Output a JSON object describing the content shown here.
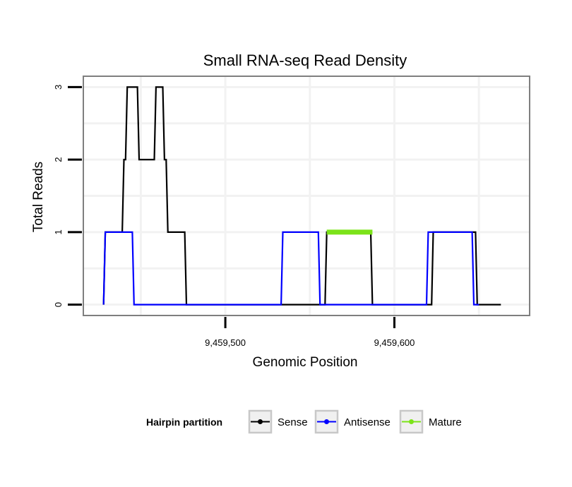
{
  "chart_data": {
    "type": "line",
    "title": "Small RNA-seq Read Density",
    "xlabel": "Genomic Position",
    "ylabel": "Total Reads",
    "xlim": [
      9459416,
      9459680
    ],
    "ylim": [
      -0.15,
      3.15
    ],
    "x_ticks": [
      {
        "value": 9459500,
        "label": "9,459,500"
      },
      {
        "value": 9459600,
        "label": "9,459,600"
      }
    ],
    "y_ticks": [
      {
        "value": 0,
        "label": "0"
      },
      {
        "value": 1,
        "label": "1"
      },
      {
        "value": 2,
        "label": "2"
      },
      {
        "value": 3,
        "label": "3"
      }
    ],
    "grid": true,
    "series": [
      {
        "name": "Sense",
        "color": "#000000",
        "x": [
          9459428,
          9459429,
          9459439,
          9459440,
          9459441,
          9459442,
          9459448,
          9459449,
          9459458,
          9459459,
          9459463,
          9459464,
          9459465,
          9459466,
          9459476,
          9459477,
          9459559,
          9459560,
          9459586,
          9459587,
          9459622,
          9459623,
          9459648,
          9459649,
          9459663
        ],
        "y": [
          0,
          1,
          1,
          2,
          2,
          3,
          3,
          2,
          2,
          3,
          3,
          2,
          2,
          1,
          1,
          0,
          0,
          1,
          1,
          0,
          0,
          1,
          1,
          0,
          0
        ]
      },
      {
        "name": "Antisense",
        "color": "#0000ff",
        "x": [
          9459428,
          9459429,
          9459445,
          9459446,
          9459476,
          9459477,
          9459533,
          9459534,
          9459555,
          9459556,
          9459619,
          9459620,
          9459646,
          9459647,
          9459650
        ],
        "y": [
          0,
          1,
          1,
          0,
          0,
          0,
          0,
          1,
          1,
          0,
          0,
          1,
          1,
          0,
          0
        ]
      },
      {
        "name": "Mature",
        "color": "#7ce319",
        "x": [
          9459560,
          9459587
        ],
        "y": [
          1,
          1
        ]
      }
    ],
    "legend": {
      "title": "Hairpin partition",
      "position": "bottom",
      "items": [
        "Sense",
        "Antisense",
        "Mature"
      ]
    }
  }
}
